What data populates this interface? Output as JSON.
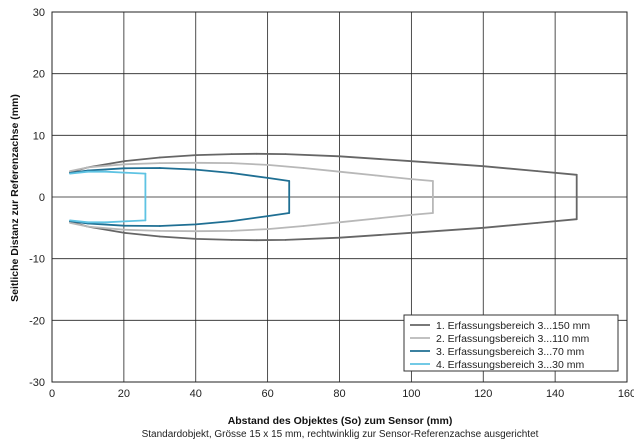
{
  "chart_data": {
    "type": "line",
    "xlabel": "Abstand des Objektes (So) zum Sensor (mm)",
    "ylabel": "Seitliche Distanz zur Referenzachse (mm)",
    "caption": "Standardobjekt, Grösse 15 x 15 mm, rechtwinklig zur Sensor-Referenzachse ausgerichtet",
    "xlim": [
      0,
      160
    ],
    "ylim": [
      -30,
      30
    ],
    "xticks": [
      0,
      20,
      40,
      60,
      80,
      100,
      120,
      140,
      160
    ],
    "yticks": [
      -30,
      -20,
      -10,
      0,
      10,
      20,
      30
    ],
    "grid": true,
    "legend_position": "bottom-right",
    "series": [
      {
        "name": "1. Erfassungsbereich 3...150 mm",
        "color": "#666666",
        "x": [
          5,
          10,
          20,
          30,
          40,
          50,
          57,
          65,
          80,
          100,
          120,
          135,
          146,
          146,
          135,
          120,
          100,
          80,
          65,
          57,
          50,
          40,
          30,
          20,
          10,
          5
        ],
        "y": [
          4,
          4.8,
          5.8,
          6.4,
          6.8,
          6.95,
          7,
          6.95,
          6.6,
          5.8,
          5,
          4.2,
          3.6,
          -3.6,
          -4.2,
          -5,
          -5.8,
          -6.6,
          -6.95,
          -7,
          -6.95,
          -6.8,
          -6.4,
          -5.8,
          -4.8,
          -4
        ]
      },
      {
        "name": "2. Erfassungsbereich 3...110 mm",
        "color": "#b8b8b8",
        "x": [
          5,
          10,
          20,
          30,
          40,
          50,
          60,
          70,
          80,
          90,
          100,
          106,
          106,
          100,
          90,
          80,
          70,
          60,
          50,
          40,
          30,
          20,
          10,
          5
        ],
        "y": [
          4.2,
          4.8,
          5.3,
          5.5,
          5.55,
          5.5,
          5.2,
          4.7,
          4.1,
          3.5,
          2.9,
          2.6,
          -2.6,
          -2.9,
          -3.5,
          -4.1,
          -4.7,
          -5.2,
          -5.5,
          -5.55,
          -5.5,
          -5.3,
          -4.8,
          -4.2
        ]
      },
      {
        "name": "3. Erfassungsbereich 3...70 mm",
        "color": "#1f6f93",
        "x": [
          5,
          10,
          20,
          30,
          40,
          50,
          60,
          66,
          66,
          60,
          50,
          40,
          30,
          20,
          10,
          5
        ],
        "y": [
          3.9,
          4.3,
          4.65,
          4.7,
          4.45,
          3.9,
          3.1,
          2.6,
          -2.6,
          -3.1,
          -3.9,
          -4.45,
          -4.7,
          -4.65,
          -4.3,
          -3.9
        ]
      },
      {
        "name": "4. Erfassungsbereich 3...30 mm",
        "color": "#5ec3e3",
        "x": [
          5,
          10,
          15,
          20,
          26,
          26,
          20,
          15,
          10,
          5
        ],
        "y": [
          3.8,
          4.1,
          4.1,
          3.95,
          3.8,
          -3.8,
          -3.95,
          -4.1,
          -4.1,
          -3.8
        ]
      }
    ]
  }
}
